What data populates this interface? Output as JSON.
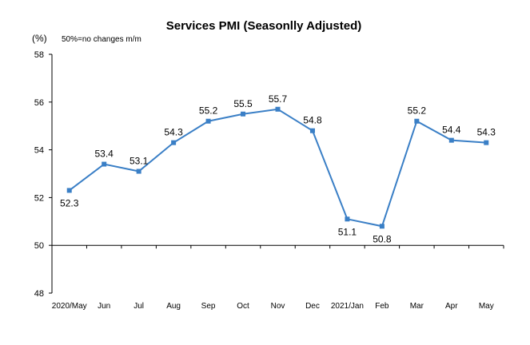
{
  "chart_data": {
    "type": "line",
    "title": "Services PMI (Seasonlly Adjusted)",
    "unit_label": "(%)",
    "note": "50%=no changes  m/m",
    "categories": [
      "2020/May",
      "Jun",
      "Jul",
      "Aug",
      "Sep",
      "Oct",
      "Nov",
      "Dec",
      "2021/Jan",
      "Feb",
      "Mar",
      "Apr",
      "May"
    ],
    "series": [
      {
        "values": [
          52.3,
          53.4,
          53.1,
          54.3,
          55.2,
          55.5,
          55.7,
          54.8,
          51.1,
          50.8,
          55.2,
          54.4,
          54.3
        ]
      }
    ],
    "data_labels": [
      "52.3",
      "53.4",
      "53.1",
      "54.3",
      "55.2",
      "55.5",
      "55.7",
      "54.8",
      "51.1",
      "50.8",
      "55.2",
      "54.4",
      "54.3"
    ],
    "label_positions": [
      "below",
      "above",
      "above",
      "above",
      "above",
      "above",
      "above",
      "above",
      "below",
      "below",
      "above",
      "above",
      "above"
    ],
    "ylim": [
      48,
      58
    ],
    "yticks": [
      48,
      50,
      52,
      54,
      56,
      58
    ],
    "ytick_labels": [
      "48",
      "50",
      "52",
      "54",
      "56",
      "58"
    ],
    "reference_line": 50,
    "grid": false,
    "line_color": "#3a7fc6"
  }
}
